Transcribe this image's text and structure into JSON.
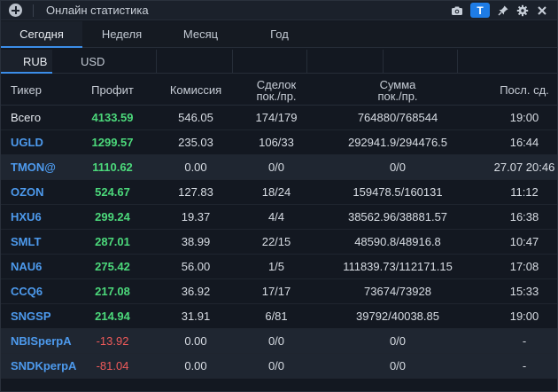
{
  "window": {
    "title": "Онлайн статистика",
    "badge": "T"
  },
  "icons": [
    "add-icon",
    "camera-icon",
    "pin-icon",
    "settings-icon",
    "close-icon"
  ],
  "tabs": [
    {
      "label": "Сегодня",
      "active": true
    },
    {
      "label": "Неделя",
      "active": false
    },
    {
      "label": "Месяц",
      "active": false
    },
    {
      "label": "Год",
      "active": false
    }
  ],
  "currency": [
    {
      "label": "RUB",
      "active": true
    },
    {
      "label": "USD",
      "active": false
    }
  ],
  "table": {
    "headers": {
      "ticker": "Тикер",
      "profit": "Профит",
      "commission": "Комиссия",
      "deals_1": "Сделок",
      "deals_2": "пок./пр.",
      "sum_1": "Сумма",
      "sum_2": "пок./пр.",
      "last_1": "Посл. сд."
    },
    "rows": [
      {
        "ticker": "Всего",
        "profit": "4133.59",
        "commission": "546.05",
        "deals": "174/179",
        "sum": "764880/768544",
        "last": "19:00"
      },
      {
        "ticker": "UGLD",
        "profit": "1299.57",
        "commission": "235.03",
        "deals": "106/33",
        "sum": "292941.9/294476.5",
        "last": "16:44"
      },
      {
        "ticker": "TMON@",
        "profit": "1110.62",
        "commission": "0.00",
        "deals": "0/0",
        "sum": "0/0",
        "last": "27.07 20:46"
      },
      {
        "ticker": "OZON",
        "profit": "524.67",
        "commission": "127.83",
        "deals": "18/24",
        "sum": "159478.5/160131",
        "last": "11:12"
      },
      {
        "ticker": "HXU6",
        "profit": "299.24",
        "commission": "19.37",
        "deals": "4/4",
        "sum": "38562.96/38881.57",
        "last": "16:38"
      },
      {
        "ticker": "SMLT",
        "profit": "287.01",
        "commission": "38.99",
        "deals": "22/15",
        "sum": "48590.8/48916.8",
        "last": "10:47"
      },
      {
        "ticker": "NAU6",
        "profit": "275.42",
        "commission": "56.00",
        "deals": "1/5",
        "sum": "111839.73/112171.15",
        "last": "17:08"
      },
      {
        "ticker": "CCQ6",
        "profit": "217.08",
        "commission": "36.92",
        "deals": "17/17",
        "sum": "73674/73928",
        "last": "15:33"
      },
      {
        "ticker": "SNGSP",
        "profit": "214.94",
        "commission": "31.91",
        "deals": "6/81",
        "sum": "39792/40038.85",
        "last": "19:00"
      },
      {
        "ticker": "NBISperpA",
        "profit": "-13.92",
        "commission": "0.00",
        "deals": "0/0",
        "sum": "0/0",
        "last": "-"
      },
      {
        "ticker": "SNDKperpA",
        "profit": "-81.04",
        "commission": "0.00",
        "deals": "0/0",
        "sum": "0/0",
        "last": "-"
      }
    ]
  },
  "colors": {
    "background": "#131821",
    "accent": "#3b8de8",
    "profit_positive": "#4cd97b",
    "profit_negative": "#ef5a5a",
    "ticker_link": "#4d9aed"
  }
}
